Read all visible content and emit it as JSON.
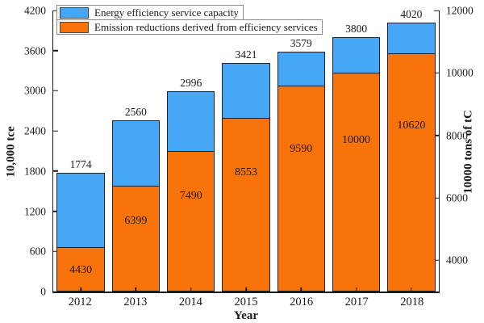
{
  "chart_data": {
    "type": "bar",
    "subtype": "stacked-dual-axis-overlay",
    "title": "",
    "categories": [
      "2012",
      "2013",
      "2014",
      "2015",
      "2016",
      "2017",
      "2018"
    ],
    "series": [
      {
        "name": "Energy efficiency service capacity",
        "axis": "left",
        "color": "#46a7f7",
        "role": "total-bar",
        "values": [
          1774,
          2560,
          2996,
          3421,
          3579,
          3800,
          4020
        ]
      },
      {
        "name": "Emission reductions derived from efficiency services",
        "axis": "right",
        "color": "#f8740a",
        "role": "inner-bar",
        "values": [
          4430,
          6399,
          7490,
          8553,
          9590,
          10000,
          10620
        ]
      }
    ],
    "xlabel": "Year",
    "left_axis": {
      "label": "10,000 tce",
      "ticks": [
        0,
        600,
        1200,
        1800,
        2400,
        3000,
        3600,
        4200
      ],
      "range": [
        0,
        4200
      ]
    },
    "right_axis": {
      "label": "10000 tons of tC",
      "ticks": [
        4000,
        6000,
        8000,
        10000,
        12000
      ],
      "range": [
        3000,
        12000
      ]
    },
    "legend_position": "top-left",
    "grid": false,
    "axis_color": "#1a1a1a",
    "bar_border_color": "#1d2433"
  }
}
